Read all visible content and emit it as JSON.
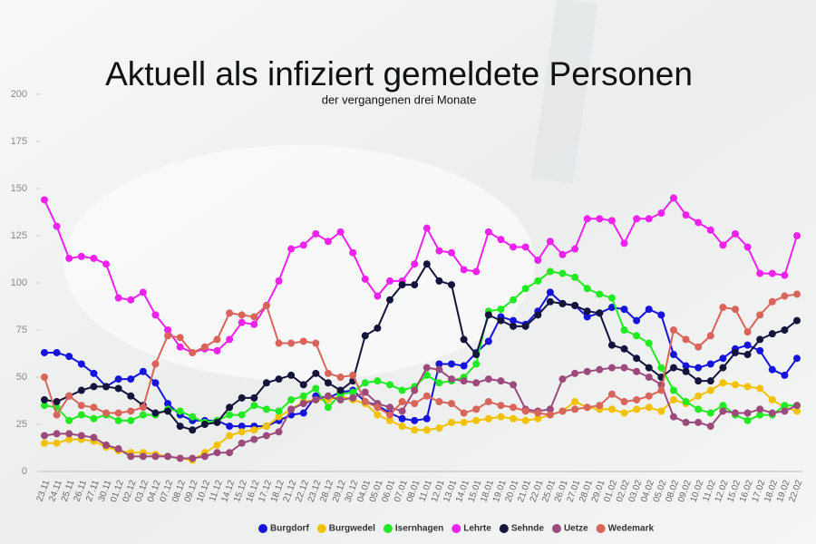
{
  "chart_data": {
    "type": "line",
    "title": "Aktuell als infiziert gemeldete Personen",
    "subtitle": "der vergangenen drei Monate",
    "categories": [
      "23.11",
      "24.11",
      "25.11",
      "26.11",
      "27.11",
      "30.11",
      "01.12",
      "02.12",
      "03.12",
      "04.12",
      "07.12",
      "08.12",
      "09.12",
      "10.12",
      "11.12",
      "14.12",
      "15.12",
      "16.12",
      "17.12",
      "18.12",
      "21.12",
      "22.12",
      "23.12",
      "28.12",
      "29.12",
      "30.12",
      "04.01",
      "05.01",
      "06.01",
      "07.01",
      "08.01",
      "11.01",
      "12.01",
      "13.01",
      "14.01",
      "15.01",
      "18.01",
      "19.01",
      "20.01",
      "21.01",
      "22.01",
      "25.01",
      "26.01",
      "27.01",
      "28.01",
      "29.01",
      "01.02",
      "02.02",
      "03.02",
      "04.02",
      "05.02",
      "08.02",
      "09.02",
      "10.02",
      "11.02",
      "12.02",
      "15.02",
      "16.02",
      "17.02",
      "18.02",
      "19.02",
      "22.02"
    ],
    "ylim": [
      0,
      200
    ],
    "yticks": [
      0,
      25,
      50,
      75,
      100,
      125,
      150,
      175,
      200
    ],
    "grid": false,
    "legend": "bottom",
    "series": [
      {
        "name": "Burgdorf",
        "color": "#1414dc",
        "values": [
          63,
          63,
          61,
          57,
          52,
          45,
          49,
          49,
          53,
          47,
          36,
          30,
          27,
          27,
          27,
          24,
          24,
          24,
          24,
          27,
          30,
          31,
          40,
          39,
          42,
          43,
          37,
          35,
          31,
          28,
          27,
          28,
          57,
          57,
          56,
          63,
          69,
          82,
          80,
          78,
          85,
          95,
          89,
          88,
          82,
          84,
          87,
          86,
          80,
          86,
          83,
          62,
          56,
          55,
          57,
          60,
          65,
          67,
          64,
          54,
          51,
          60
        ]
      },
      {
        "name": "Burgwedel",
        "color": "#f2c200",
        "values": [
          15,
          15,
          17,
          17,
          16,
          13,
          11,
          10,
          10,
          9,
          8,
          7,
          6,
          10,
          14,
          19,
          21,
          22,
          24,
          29,
          33,
          37,
          38,
          38,
          40,
          38,
          36,
          30,
          27,
          24,
          22,
          22,
          23,
          26,
          26,
          27,
          28,
          29,
          28,
          27,
          28,
          30,
          32,
          37,
          34,
          33,
          33,
          31,
          33,
          34,
          32,
          38,
          36,
          40,
          43,
          47,
          46,
          45,
          44,
          38,
          34,
          32
        ]
      },
      {
        "name": "Isernhagen",
        "color": "#22ea22",
        "values": [
          35,
          34,
          27,
          30,
          28,
          30,
          27,
          27,
          30,
          30,
          33,
          32,
          29,
          26,
          27,
          30,
          30,
          35,
          33,
          32,
          38,
          40,
          44,
          34,
          41,
          42,
          47,
          48,
          46,
          43,
          45,
          51,
          47,
          48,
          50,
          57,
          85,
          86,
          91,
          97,
          101,
          106,
          105,
          103,
          97,
          94,
          92,
          75,
          72,
          68,
          55,
          43,
          37,
          33,
          31,
          35,
          30,
          27,
          30,
          30,
          35,
          35
        ]
      },
      {
        "name": "Lehrte",
        "color": "#ee22ee",
        "values": [
          144,
          130,
          113,
          114,
          113,
          110,
          92,
          91,
          95,
          83,
          75,
          66,
          63,
          65,
          64,
          70,
          79,
          78,
          88,
          101,
          118,
          120,
          126,
          122,
          127,
          116,
          102,
          93,
          101,
          101,
          110,
          129,
          117,
          116,
          107,
          106,
          127,
          123,
          119,
          119,
          112,
          122,
          115,
          118,
          134,
          134,
          133,
          121,
          134,
          134,
          137,
          145,
          136,
          132,
          128,
          120,
          126,
          119,
          105,
          105,
          104,
          125
        ]
      },
      {
        "name": "Sehnde",
        "color": "#14143c",
        "values": [
          38,
          37,
          40,
          43,
          45,
          45,
          44,
          40,
          35,
          31,
          32,
          24,
          22,
          25,
          26,
          34,
          39,
          39,
          47,
          49,
          51,
          46,
          52,
          47,
          43,
          48,
          72,
          76,
          91,
          99,
          99,
          110,
          101,
          99,
          70,
          62,
          83,
          80,
          77,
          77,
          83,
          90,
          89,
          88,
          85,
          84,
          67,
          65,
          60,
          55,
          50,
          55,
          53,
          48,
          48,
          55,
          63,
          62,
          70,
          73,
          75,
          80
        ]
      },
      {
        "name": "Uetze",
        "color": "#9c4a7c",
        "values": [
          19,
          20,
          20,
          19,
          18,
          14,
          12,
          8,
          8,
          8,
          8,
          7,
          7,
          8,
          10,
          10,
          15,
          17,
          19,
          21,
          33,
          36,
          38,
          40,
          38,
          39,
          42,
          36,
          34,
          32,
          43,
          55,
          54,
          49,
          48,
          47,
          49,
          48,
          46,
          33,
          32,
          33,
          49,
          52,
          53,
          54,
          55,
          55,
          53,
          50,
          46,
          29,
          26,
          26,
          24,
          32,
          31,
          31,
          33,
          31,
          32,
          35
        ]
      },
      {
        "name": "Wedemark",
        "color": "#d9645a",
        "values": [
          50,
          30,
          40,
          35,
          34,
          31,
          31,
          32,
          34,
          57,
          72,
          71,
          63,
          66,
          70,
          84,
          83,
          82,
          88,
          68,
          68,
          69,
          68,
          52,
          50,
          51,
          37,
          34,
          30,
          37,
          36,
          40,
          37,
          36,
          31,
          33,
          37,
          35,
          34,
          32,
          31,
          30,
          32,
          33,
          34,
          35,
          41,
          37,
          38,
          40,
          43,
          75,
          70,
          66,
          72,
          87,
          86,
          74,
          83,
          90,
          93,
          94
        ]
      }
    ]
  }
}
